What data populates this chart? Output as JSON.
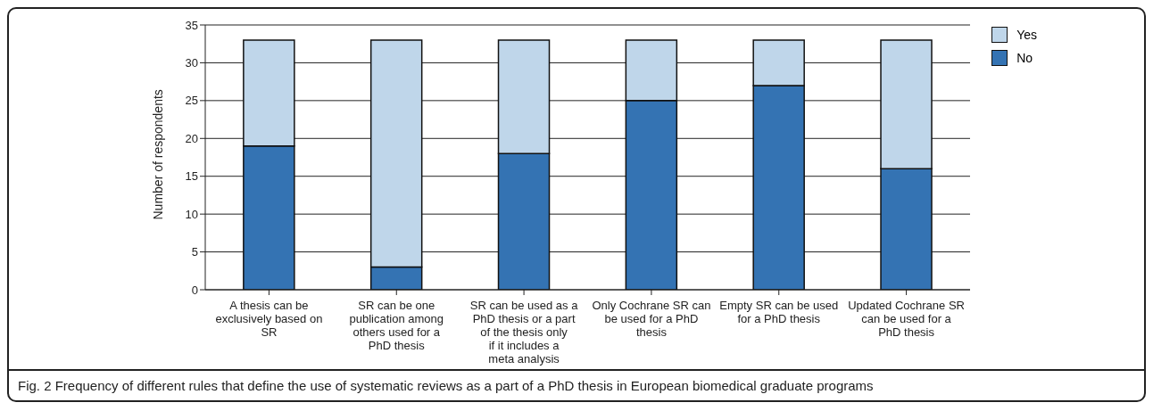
{
  "chart_data": {
    "type": "bar",
    "stacked": true,
    "ylabel": "Number of respondents",
    "categories": [
      "A thesis can be exclusively based on SR",
      "SR can be one publication among others used for a PhD thesis",
      "SR can be used as a PhD thesis or a part of the thesis only if it includes a meta analysis",
      "Only Cochrane SR can be used for a PhD thesis",
      "Empty SR can be used for a PhD thesis",
      "Updated Cochrane SR can be used for a PhD thesis"
    ],
    "series": [
      {
        "name": "No",
        "color": "#3473b3",
        "values": [
          19,
          3,
          18,
          25,
          27,
          16
        ]
      },
      {
        "name": "Yes",
        "color": "#bfd6ea",
        "values": [
          14,
          30,
          15,
          8,
          6,
          17
        ]
      }
    ],
    "ylim": [
      0,
      35
    ],
    "yticks": [
      0,
      5,
      10,
      15,
      20,
      25,
      30,
      35
    ],
    "grid": "y",
    "legend": "top right",
    "annotations": [
      "Fig. 2 Frequency of different rules that define the use of systematic reviews as a part of a PhD thesis in European biomedical graduate programs"
    ]
  }
}
